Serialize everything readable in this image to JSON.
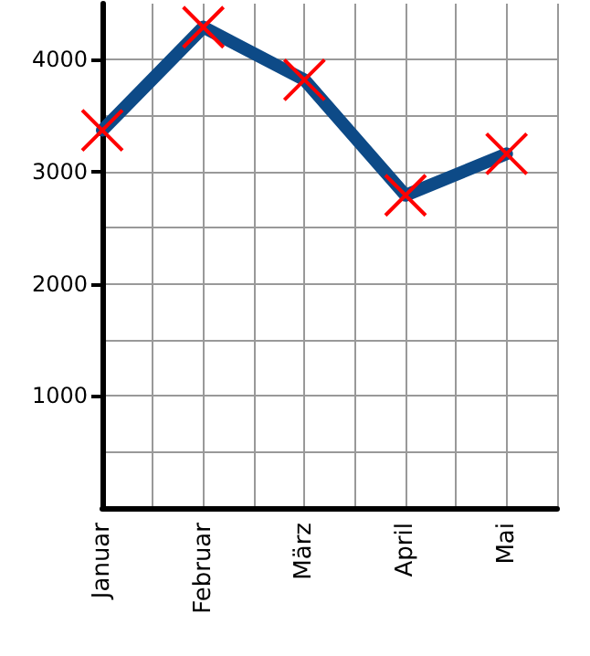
{
  "chart_data": {
    "type": "line",
    "categories": [
      "Januar",
      "Februar",
      "März",
      "April",
      "Mai"
    ],
    "series": [
      {
        "color": "#0d4a87",
        "colors": [
          "#ff0000",
          "#ff0000",
          "#ff0000",
          "#ff0000",
          "#ff0000"
        ],
        "values": [
          3370,
          4290,
          3820,
          2790,
          3160
        ]
      }
    ],
    "ylim": [
      0,
      4500
    ],
    "yticks": [
      {
        "value": 0,
        "label": null
      },
      1000,
      2000,
      3000,
      4000
    ],
    "grid": true,
    "marker": "cross",
    "line_style": "solid"
  }
}
